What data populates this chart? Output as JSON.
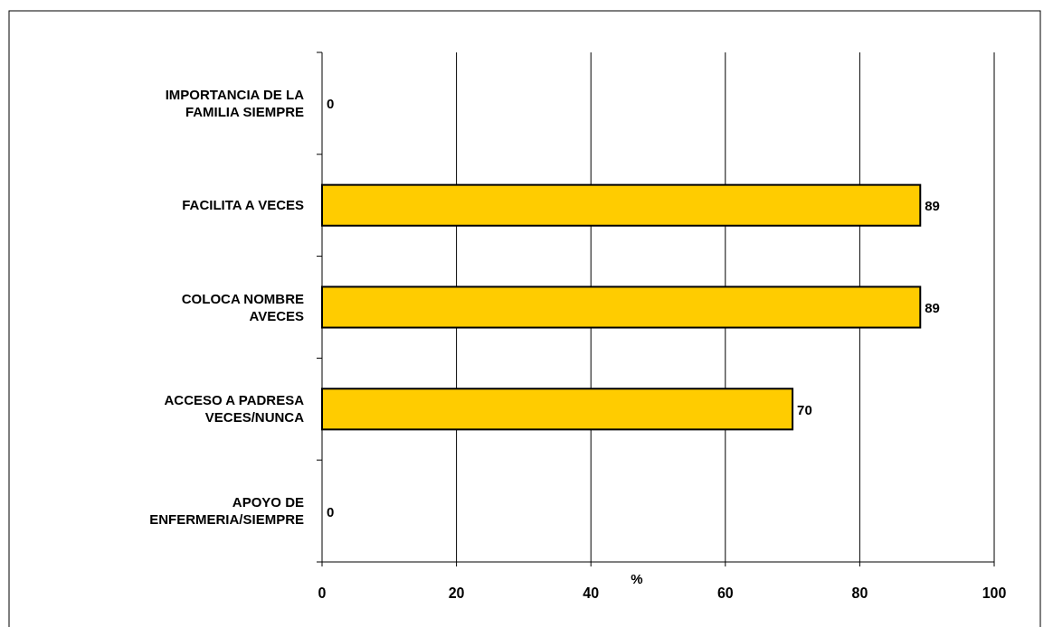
{
  "chart_data": {
    "type": "bar",
    "orientation": "horizontal",
    "xlabel": "%",
    "categories": [
      "IMPORTANCIA DE LA FAMILIA SIEMPRE",
      "FACILITA A VECES",
      "COLOCA NOMBRE AVECES",
      "ACCESO A PADRESA VECES/NUNCA",
      "APOYO DE ENFERMERIA/SIEMPRE"
    ],
    "values": [
      0,
      89,
      89,
      70,
      0
    ],
    "color": "#ffcc00",
    "xlim": [
      0,
      100
    ],
    "xticks": [
      0,
      20,
      40,
      60,
      80,
      100
    ],
    "grid": "x",
    "data_labels": true
  }
}
